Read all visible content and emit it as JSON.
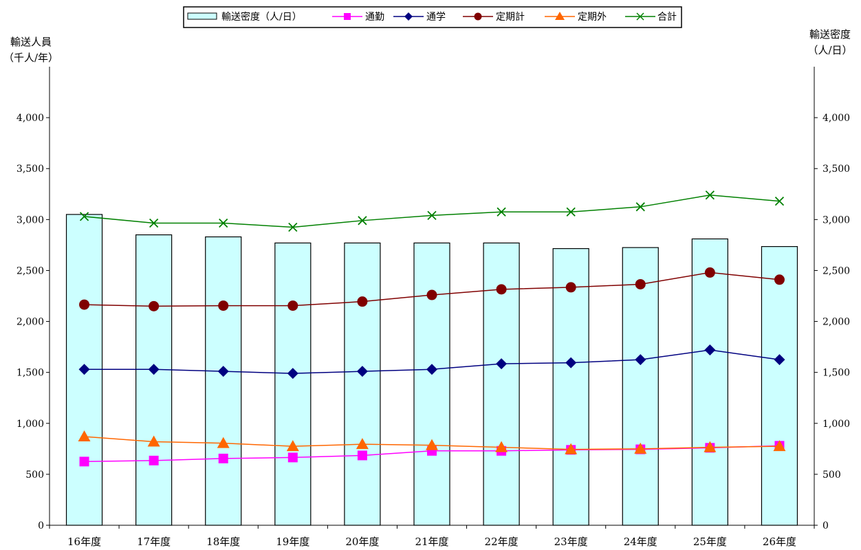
{
  "chart_data": {
    "type": "bar",
    "categories": [
      "16年度",
      "17年度",
      "18年度",
      "19年度",
      "20年度",
      "21年度",
      "22年度",
      "23年度",
      "24年度",
      "25年度",
      "26年度"
    ],
    "left_axis": {
      "label_line1": "輸送人員",
      "label_line2": "（千人/年）",
      "ylim": [
        0,
        4500
      ],
      "ticks": [
        0,
        500,
        1000,
        1500,
        2000,
        2500,
        3000,
        3500,
        4000
      ]
    },
    "right_axis": {
      "label_line1": "輸送密度",
      "label_line2": "（人/日）",
      "ylim": [
        0,
        4500
      ],
      "ticks": [
        0,
        500,
        1000,
        1500,
        2000,
        2500,
        3000,
        3500,
        4000
      ]
    },
    "tick_labels": [
      "0",
      "500",
      "1,000",
      "1,500",
      "2,000",
      "2,500",
      "3,000",
      "3,500",
      "4,000"
    ],
    "bar_series": {
      "name": "輸送密度（人/日）",
      "color": "#ccffff",
      "values": [
        3050,
        2850,
        2830,
        2770,
        2770,
        2770,
        2770,
        2715,
        2725,
        2810,
        2735
      ]
    },
    "line_series": [
      {
        "name": "通勤",
        "color": "#ff00ff",
        "marker": "square",
        "values": [
          625,
          635,
          655,
          665,
          685,
          730,
          730,
          740,
          745,
          760,
          780
        ]
      },
      {
        "name": "通学",
        "color": "#000080",
        "marker": "diamond",
        "values": [
          1530,
          1530,
          1510,
          1490,
          1510,
          1530,
          1585,
          1595,
          1625,
          1720,
          1625
        ]
      },
      {
        "name": "定期計",
        "color": "#800000",
        "marker": "circle",
        "values": [
          2165,
          2150,
          2155,
          2155,
          2195,
          2260,
          2315,
          2335,
          2365,
          2480,
          2410
        ]
      },
      {
        "name": "定期外",
        "color": "#ff6600",
        "marker": "triangle",
        "values": [
          870,
          820,
          805,
          775,
          795,
          785,
          765,
          745,
          750,
          765,
          775
        ]
      },
      {
        "name": "合計",
        "color": "#008000",
        "marker": "x",
        "values": [
          3030,
          2965,
          2965,
          2925,
          2990,
          3040,
          3075,
          3075,
          3125,
          3240,
          3180
        ]
      }
    ],
    "legend_position": "top-center"
  }
}
